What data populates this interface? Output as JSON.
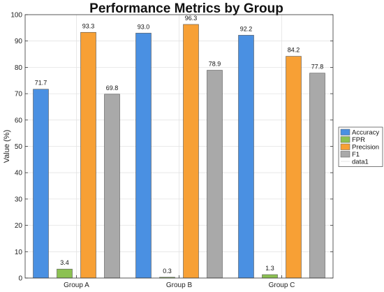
{
  "chart_data": {
    "type": "bar",
    "title": "Performance Metrics by Group",
    "xlabel": "",
    "ylabel": "Value (%)",
    "categories": [
      "Group A",
      "Group B",
      "Group C"
    ],
    "ylim": [
      0,
      100
    ],
    "yticks": [
      0,
      10,
      20,
      30,
      40,
      50,
      60,
      70,
      80,
      90,
      100
    ],
    "grid": true,
    "legend_position": "right",
    "series": [
      {
        "name": "Accuracy",
        "color": "#4a90e2",
        "values": [
          71.7,
          93.0,
          92.2
        ],
        "labels": [
          "71.7",
          "93.0",
          "92.2"
        ]
      },
      {
        "name": "FPR",
        "color": "#8cc152",
        "values": [
          3.4,
          0.3,
          1.3
        ],
        "labels": [
          "3.4",
          "0.3",
          "1.3"
        ]
      },
      {
        "name": "Precision",
        "color": "#f7a035",
        "values": [
          93.3,
          96.3,
          84.2
        ],
        "labels": [
          "93.3",
          "96.3",
          "84.2"
        ]
      },
      {
        "name": "F1",
        "color": "#a9a9a9",
        "values": [
          69.8,
          78.9,
          77.8
        ],
        "labels": [
          "69.8",
          "78.9",
          "77.8"
        ]
      }
    ],
    "extra_legend_entry": "data1"
  }
}
